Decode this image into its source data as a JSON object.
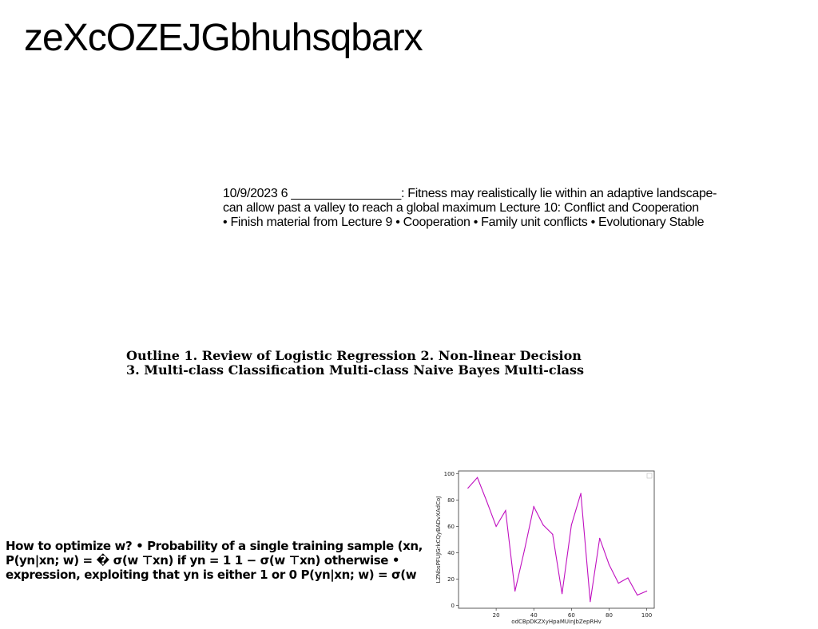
{
  "page": {
    "title": "zeXcOZEJGbhuhsqbarx"
  },
  "text_blocks": {
    "lecture": [
      "10/9/2023 6 ________________: Fitness may realistically lie within an adaptive landscape-",
      "can allow past a valley to reach a global maximum Lecture 10: Conflict and Cooperation",
      "• Finish material from Lecture 9 • Cooperation • Family unit conflicts • Evolutionary Stable"
    ],
    "outline": [
      "Outline 1. Review of Logistic Regression 2. Non-linear Decision",
      "3. Multi-class Classification Multi-class Naive Bayes Multi-class"
    ],
    "optimize": [
      "How to optimize w? • Probability of a single training sample (xn,",
      "P(yn|xn; w) = � σ(w ⊤xn) if yn = 1 1 − σ(w ⊤xn) otherwise •",
      "expression, exploiting that yn is either 1 or 0 P(yn|xn; w) = σ(w"
    ]
  },
  "chart_data": {
    "type": "line",
    "xlabel": "odCBpDKZXyHpaMUinJbZepRHv",
    "ylabel": "LZNbsPFUJGrkCQyBADvXAdCoJ",
    "xlim": [
      0,
      104
    ],
    "ylim": [
      -2,
      102
    ],
    "xticks": [
      20,
      40,
      60,
      80,
      100
    ],
    "yticks": [
      0,
      20,
      40,
      60,
      80,
      100
    ],
    "grid": false,
    "legend": "top-right (empty)",
    "line_color": "#c010c0",
    "series": [
      {
        "x": [
          5,
          10,
          15,
          20,
          25,
          30,
          35,
          40,
          45,
          50,
          55,
          60,
          65,
          70,
          75,
          80,
          85,
          90,
          95,
          100
        ],
        "values": [
          89,
          97,
          79,
          60,
          72,
          11,
          42,
          75,
          61,
          54,
          9,
          61,
          85,
          3,
          51,
          31,
          17,
          21,
          8,
          11
        ]
      }
    ]
  }
}
